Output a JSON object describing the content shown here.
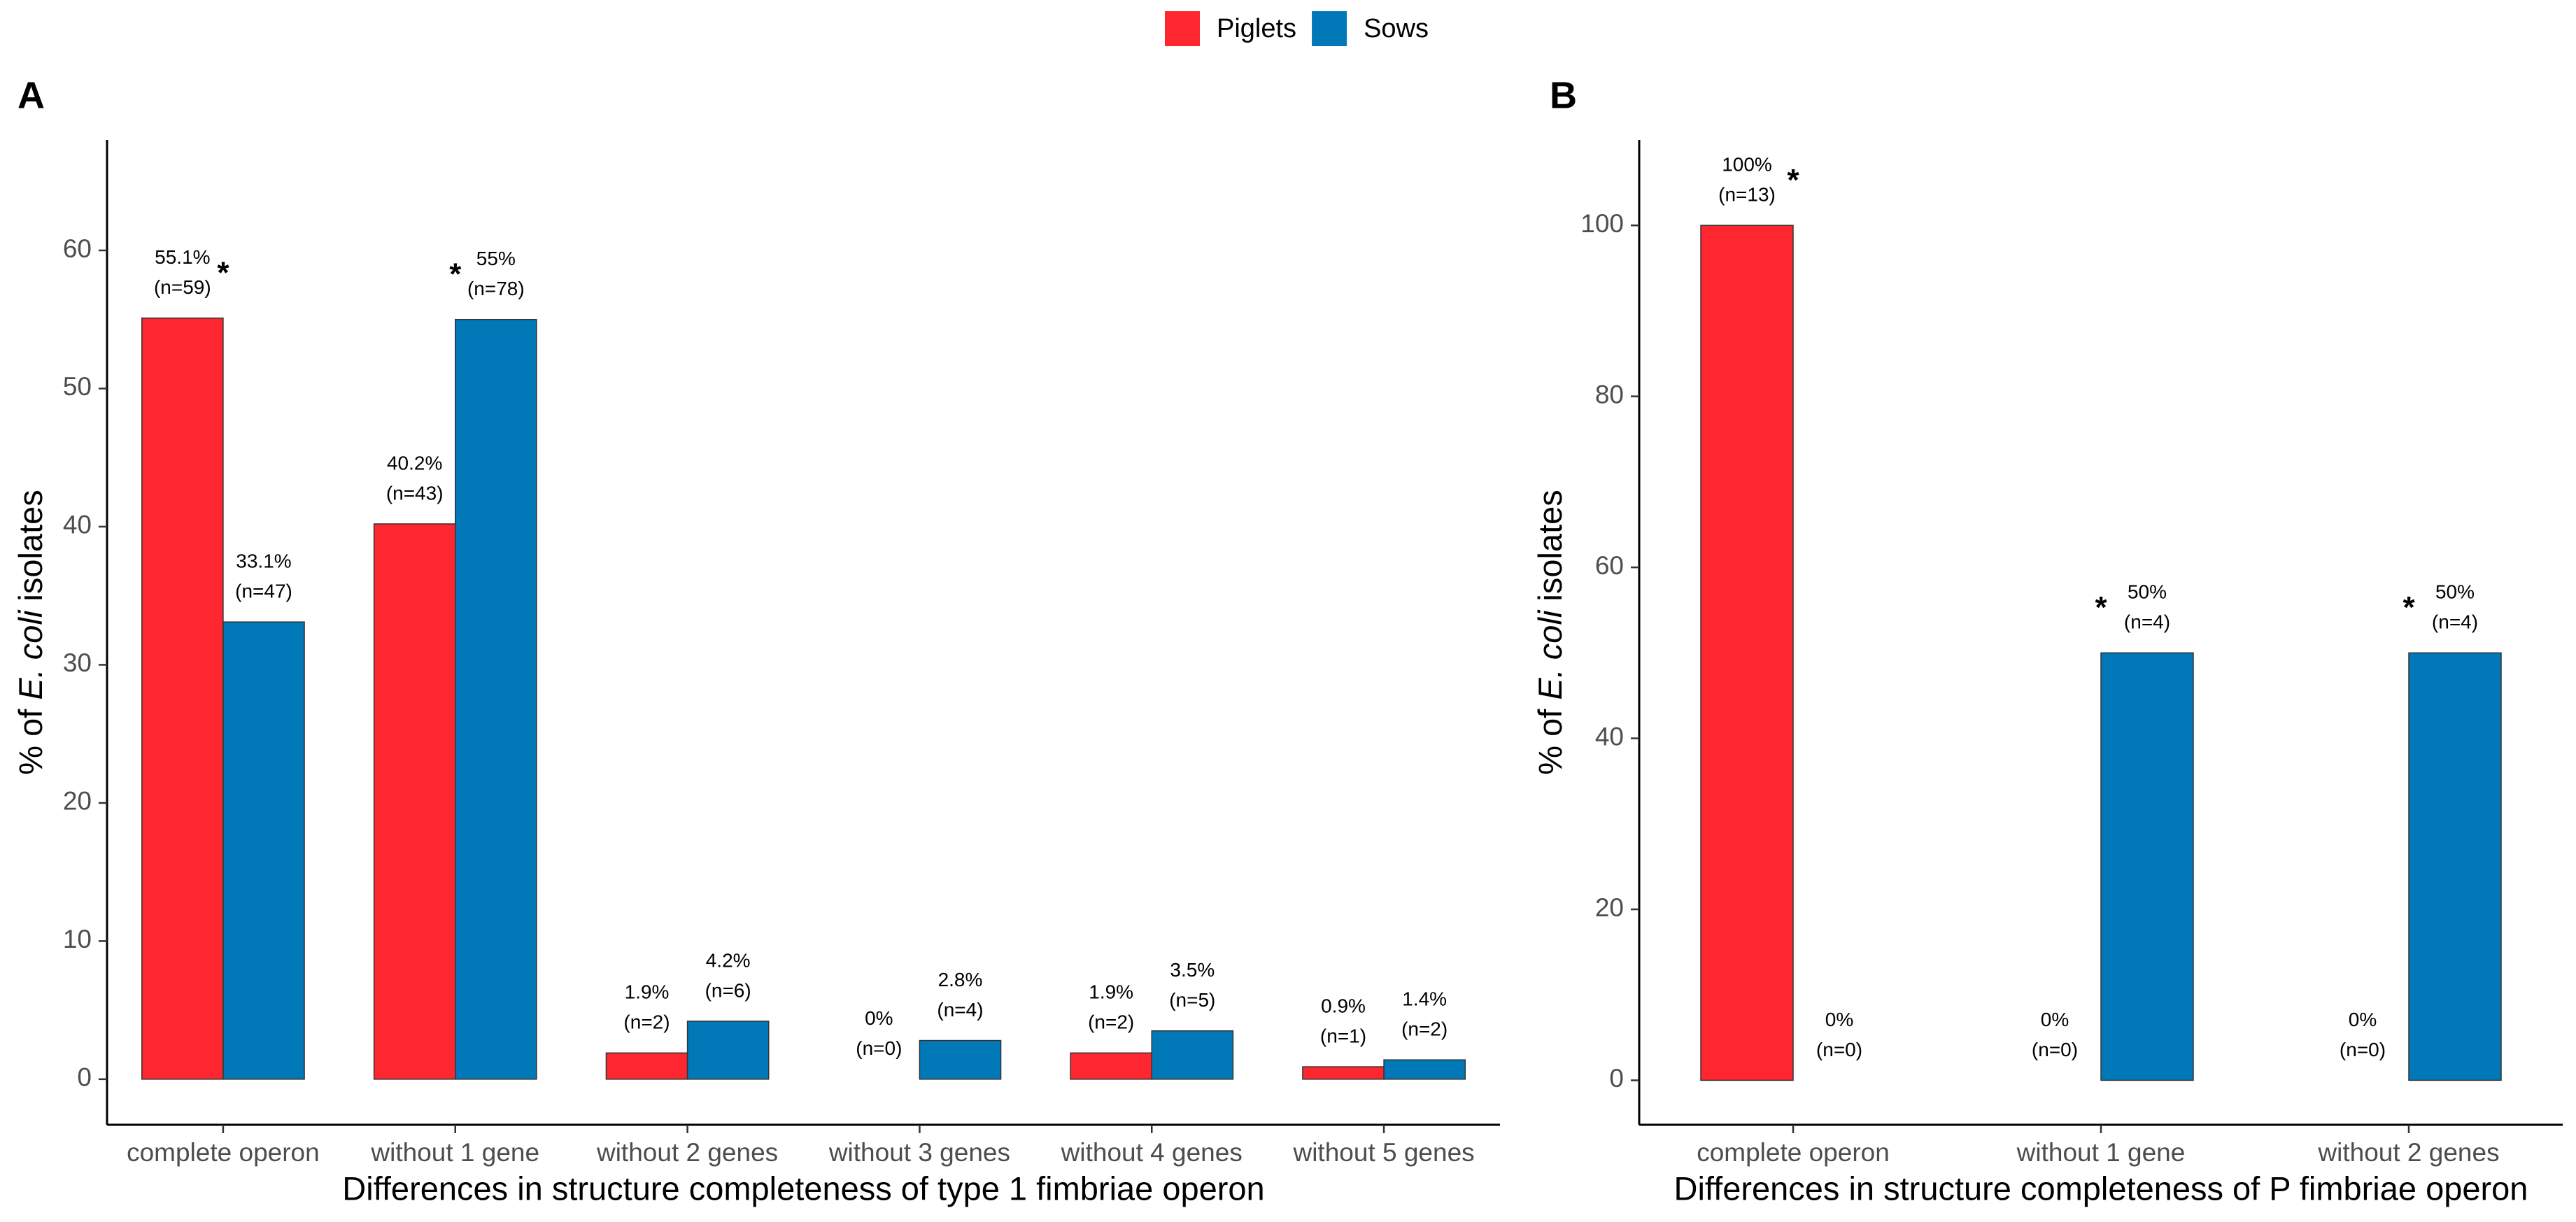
{
  "chart_data": [
    {
      "type": "bar",
      "panel": "A",
      "xlabel": "Differences in structure completeness of type 1 fimbriae operon",
      "ylabel_parts": [
        "% of ",
        "E. coli",
        " isolates"
      ],
      "categories": [
        "complete operon",
        "without 1 gene",
        "without 2 genes",
        "without 3 genes",
        "without 4 genes",
        "without 5 genes"
      ],
      "series": [
        {
          "name": "Piglets",
          "color": "#fe272f",
          "values": [
            55.1,
            40.2,
            1.9,
            0,
            1.9,
            0.9
          ],
          "value_labels": [
            "55.1%",
            "40.2%",
            "1.9%",
            "0%",
            "1.9%",
            "0.9%"
          ],
          "n_labels": [
            "(n=59)",
            "(n=43)",
            "(n=2)",
            "(n=0)",
            "(n=2)",
            "(n=1)"
          ],
          "markers": [
            "*",
            null,
            null,
            null,
            null,
            null
          ]
        },
        {
          "name": "Sows",
          "color": "#0179b8",
          "values": [
            33.1,
            55,
            4.2,
            2.8,
            3.5,
            1.4
          ],
          "value_labels": [
            "33.1%",
            "55%",
            "4.2%",
            "2.8%",
            "3.5%",
            "1.4%"
          ],
          "n_labels": [
            "(n=47)",
            "(n=78)",
            "(n=6)",
            "(n=4)",
            "(n=5)",
            "(n=2)"
          ],
          "markers": [
            null,
            "*",
            null,
            null,
            null,
            null
          ]
        }
      ],
      "ylim": [
        -3.3,
        68
      ],
      "yticks": [
        0,
        10,
        20,
        30,
        40,
        50,
        60
      ]
    },
    {
      "type": "bar",
      "panel": "B",
      "xlabel": "Differences in structure completeness of P fimbriae operon",
      "ylabel_parts": [
        "% of ",
        "E. coli",
        " isolates"
      ],
      "categories": [
        "complete operon",
        "without 1 gene",
        "without 2 genes"
      ],
      "series": [
        {
          "color": "#fe272f",
          "values": [
            100,
            0,
            0
          ],
          "value_labels": [
            "100%",
            "0%",
            "0%"
          ],
          "n_labels": [
            "(n=13)",
            "(n=0)",
            "(n=0)"
          ],
          "markers": [
            "*",
            null,
            null
          ]
        },
        {
          "color": "#0179b8",
          "values": [
            0,
            50,
            50
          ],
          "value_labels": [
            "0%",
            "50%",
            "50%"
          ],
          "n_labels": [
            "(n=0)",
            "(n=4)",
            "(n=4)"
          ],
          "markers": [
            null,
            "*",
            "*"
          ]
        }
      ],
      "ylim": [
        -5.2,
        110
      ],
      "yticks": [
        0,
        20,
        40,
        60,
        80,
        100
      ]
    }
  ]
}
